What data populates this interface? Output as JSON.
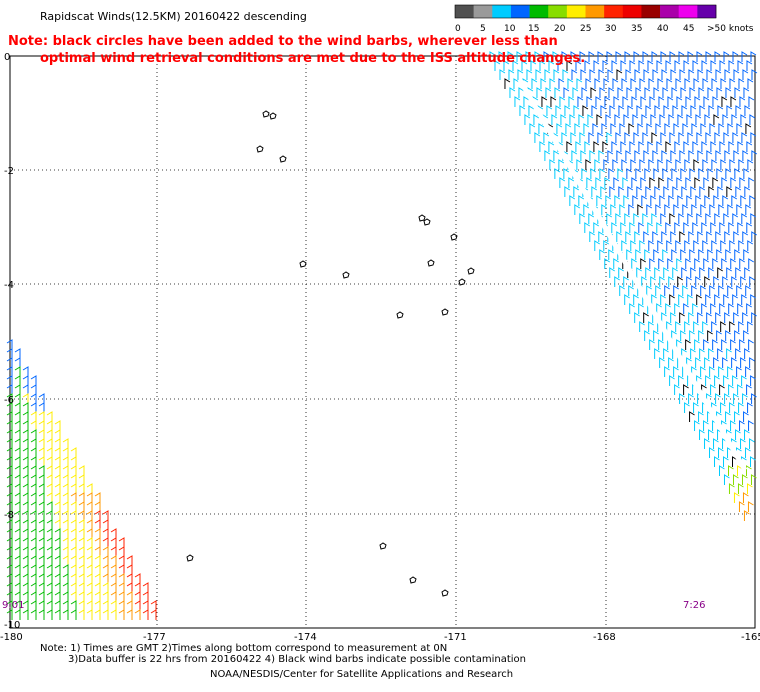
{
  "title": "Rapidscat Winds(12.5KM) 20160422 descending",
  "note_line1": "Note: black circles have been added to the wind barbs, wherever less than",
  "note_line2": "optimal wind retrieval conditions are met due to the ISS altitude changes.",
  "legend": {
    "labels": [
      "0",
      "5",
      "10",
      "15",
      "20",
      "25",
      "30",
      "35",
      "40",
      "45",
      ">50 knots"
    ],
    "colors": [
      "#505050",
      "#9a9a9a",
      "#00ccff",
      "#0066ff",
      "#00bb00",
      "#88dd00",
      "#ffee00",
      "#ff9900",
      "#ff2200",
      "#ee0000",
      "#990000",
      "#aa00aa",
      "#ee00ee",
      "#6600aa"
    ]
  },
  "axes": {
    "x_ticks": [
      "-180",
      "-177",
      "-174",
      "-171",
      "-168",
      "-165"
    ],
    "y_ticks": [
      "0",
      "-2",
      "-4",
      "-6",
      "-8",
      "-10"
    ]
  },
  "times": {
    "left": "9:01",
    "right": "7:26"
  },
  "footer": {
    "line1": "Note: 1) Times are GMT 2)Times along bottom correspond to measurement at 0N",
    "line2": "3)Data buffer is 22 hrs from 20160422 4) Black wind barbs indicate possible contamination",
    "credit": "NOAA/NESDIS/Center for Satellite Applications and Research"
  },
  "colors": {
    "note_red": "#ff0000",
    "time_purple": "#880088"
  }
}
